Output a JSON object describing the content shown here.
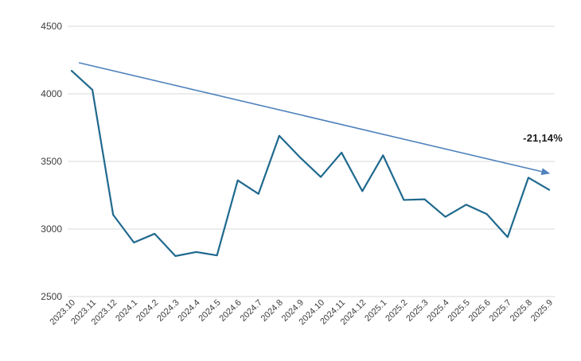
{
  "chart_data": {
    "type": "line",
    "title": "",
    "xlabel": "",
    "ylabel": "",
    "categories": [
      "2023.10",
      "2023.11",
      "2023.12",
      "2024.1",
      "2024.2",
      "2024.3",
      "2024.4",
      "2024.5",
      "2024.6",
      "2024.7",
      "2024.8",
      "2024.9",
      "2024.10",
      "2024.11",
      "2024.12",
      "2025.1",
      "2025.2",
      "2025.3",
      "2025.4",
      "2025.5",
      "2025.6",
      "2025.7",
      "2025.8",
      "2025.9"
    ],
    "series": [
      {
        "name": "monthly-values",
        "color": "#1f698e",
        "values": [
          4170,
          4030,
          3105,
          2900,
          2965,
          2800,
          2830,
          2805,
          3360,
          3260,
          3690,
          3530,
          3385,
          3565,
          3280,
          3545,
          3215,
          3220,
          3090,
          3180,
          3110,
          2940,
          3380,
          3290
        ]
      }
    ],
    "trendline": {
      "color": "#4f81bd",
      "start_index": 0.35,
      "start_value": 4230,
      "end_index": 23.05,
      "end_value": 3410
    },
    "annotation": {
      "text": "-21,14%",
      "color": "#1a1a1a"
    },
    "y_axis": {
      "min": 2500,
      "max": 4500,
      "step": 500,
      "ticks": [
        "4500",
        "4000",
        "3500",
        "3000",
        "2500"
      ]
    },
    "grid": true,
    "legend": "none",
    "colors": {
      "gridline": "#d9d9d9",
      "axis_label": "#3d3d3d",
      "background": "#ffffff"
    }
  }
}
